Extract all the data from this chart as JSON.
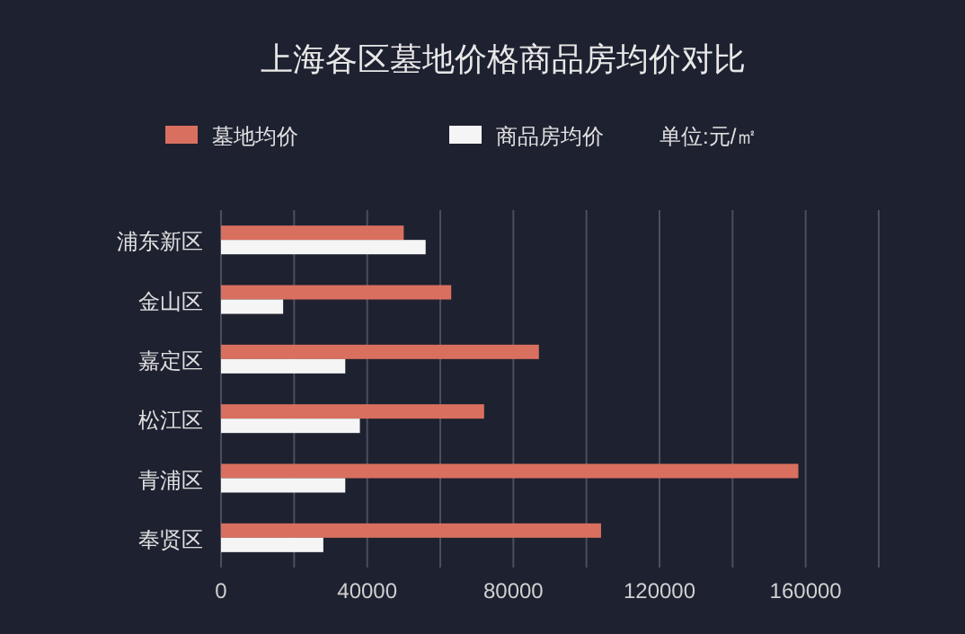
{
  "chart_data": {
    "type": "bar",
    "orientation": "horizontal",
    "title": "上海各区墓地价格商品房均价对比",
    "categories": [
      "浦东新区",
      "金山区",
      "嘉定区",
      "松江区",
      "青浦区",
      "奉贤区"
    ],
    "series": [
      {
        "name": "墓地均价",
        "color": "#d9705f",
        "values": [
          50000,
          63000,
          87000,
          72000,
          158000,
          104000
        ]
      },
      {
        "name": "商品房均价",
        "color": "#f5f5f5",
        "values": [
          56000,
          17000,
          34000,
          38000,
          34000,
          28000
        ]
      }
    ],
    "xlim": [
      0,
      180000
    ],
    "xticks": [
      0,
      {
        "value": 20000,
        "label": null
      },
      40000,
      {
        "value": 60000,
        "label": null
      },
      80000,
      {
        "value": 100000,
        "label": null
      },
      120000,
      {
        "value": 140000,
        "label": null
      },
      160000,
      {
        "value": 180000,
        "label": null
      }
    ],
    "grid": "x",
    "legend": "top",
    "annotations": [
      "单位:元/㎡"
    ]
  }
}
